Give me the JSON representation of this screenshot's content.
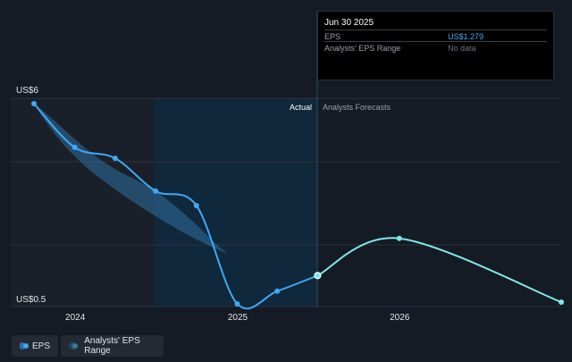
{
  "tooltip": {
    "date": "Jun 30 2025",
    "rows": [
      {
        "label": "EPS",
        "value": "US$1.279",
        "color": "#3fa9f5"
      },
      {
        "label": "Analysts' EPS Range",
        "value": "No data",
        "color": "#6b717a"
      }
    ]
  },
  "legend": {
    "eps_label": "EPS",
    "range_label": "Analysts' EPS Range"
  },
  "colors": {
    "eps": "#3fa9f5",
    "forecast": "#7ee8e8",
    "band": "#2f6fa0"
  },
  "chart_data": {
    "type": "line",
    "sections": {
      "actual_label": "Actual",
      "forecast_label": "Analysts Forecasts"
    },
    "y_top_label": "US$6",
    "y_bottom_label": "US$0.5",
    "ylim": [
      0.5,
      6
    ],
    "x_ticks": [
      "2024",
      "2025",
      "2026"
    ],
    "series": [
      {
        "name": "EPS",
        "points": [
          {
            "x": "2023-09-30",
            "y": 6.0
          },
          {
            "x": "2023-12-31",
            "y": 4.8
          },
          {
            "x": "2024-03-31",
            "y": 4.5
          },
          {
            "x": "2024-06-30",
            "y": 3.6
          },
          {
            "x": "2024-09-30",
            "y": 3.2
          },
          {
            "x": "2024-12-31",
            "y": 0.5
          },
          {
            "x": "2025-03-31",
            "y": 0.85
          },
          {
            "x": "2025-06-30",
            "y": 1.279
          }
        ]
      },
      {
        "name": "Analysts Forecasts",
        "points": [
          {
            "x": "2025-06-30",
            "y": 1.279
          },
          {
            "x": "2025-12-31",
            "y": 2.3
          },
          {
            "x": "2026-12-31",
            "y": 0.55
          }
        ]
      }
    ],
    "tooltip_point": {
      "x": "2025-06-30",
      "y": 1.279
    }
  }
}
